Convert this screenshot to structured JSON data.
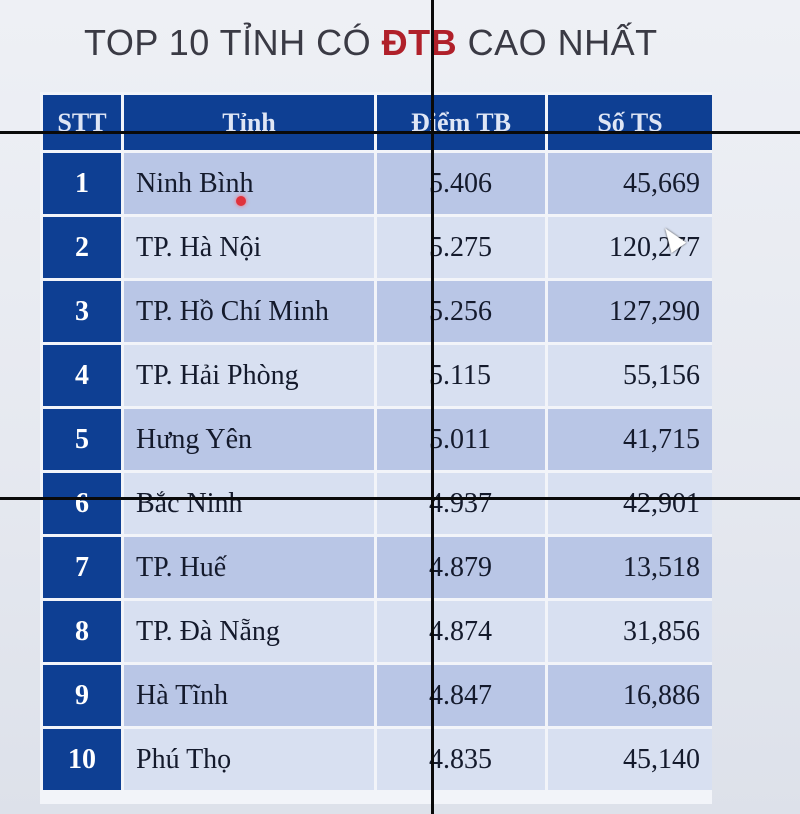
{
  "title": {
    "prefix": "TOP 10 TỈNH CÓ ",
    "accent": "ĐTB",
    "suffix": " CAO NHẤT"
  },
  "table": {
    "headers": [
      "STT",
      "Tỉnh",
      "Điểm TB",
      "Số TS"
    ],
    "rows": [
      {
        "stt": "1",
        "province": "Ninh Bình",
        "avg": "5.406",
        "count": "45,669"
      },
      {
        "stt": "2",
        "province": "TP. Hà Nội",
        "avg": "5.275",
        "count": "120,277"
      },
      {
        "stt": "3",
        "province": "TP. Hồ Chí Minh",
        "avg": "5.256",
        "count": "127,290"
      },
      {
        "stt": "4",
        "province": "TP. Hải Phòng",
        "avg": "5.115",
        "count": "55,156"
      },
      {
        "stt": "5",
        "province": "Hưng Yên",
        "avg": "5.011",
        "count": "41,715"
      },
      {
        "stt": "6",
        "province": "Bắc Ninh",
        "avg": "4.937",
        "count": "42,901"
      },
      {
        "stt": "7",
        "province": "TP. Huế",
        "avg": "4.879",
        "count": "13,518"
      },
      {
        "stt": "8",
        "province": "TP. Đà Nẵng",
        "avg": "4.874",
        "count": "31,856"
      },
      {
        "stt": "9",
        "province": "Hà Tĩnh",
        "avg": "4.847",
        "count": "16,886"
      },
      {
        "stt": "10",
        "province": "Phú Thọ",
        "avg": "4.835",
        "count": "45,140"
      }
    ]
  },
  "colors": {
    "header_bg": "#0e3f93",
    "row_dark": "#b9c6e6",
    "row_light": "#d8e0f1",
    "title_accent": "#b0202a"
  }
}
